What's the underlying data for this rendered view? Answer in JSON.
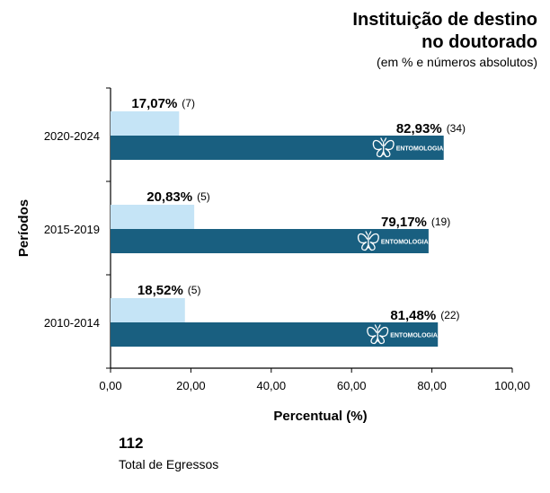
{
  "title": {
    "line1": "Instituição de destino",
    "line2": "no doutorado"
  },
  "subtitle": "(em % e números absolutos)",
  "total": {
    "value": "112",
    "label": "Total de Egressos"
  },
  "colors": {
    "light": "#c5e4f6",
    "dark": "#195f80",
    "axis": "#000000"
  },
  "bar_icon": {
    "name": "butterfly-icon",
    "label": "ENTOMOLOGIA"
  },
  "chart_data": {
    "type": "bar",
    "orientation": "horizontal",
    "xlabel": "Percentual  (%)",
    "ylabel": "Períodos",
    "xlim": [
      0,
      100
    ],
    "xticks": [
      "0,00",
      "20,00",
      "40,00",
      "60,00",
      "80,00",
      "100,00"
    ],
    "categories": [
      "2020-2024",
      "2015-2019",
      "2010-2014"
    ],
    "series": [
      {
        "values": [
          17.07,
          20.83,
          18.52
        ],
        "labels": [
          "17,07%",
          "20,83%",
          "18,52%"
        ],
        "counts": [
          "(7)",
          "(5)",
          "(5)"
        ]
      },
      {
        "values": [
          82.93,
          79.17,
          81.48
        ],
        "labels": [
          "82,93%",
          "79,17%",
          "81,48%"
        ],
        "counts": [
          "(34)",
          "(19)",
          "(22)"
        ]
      }
    ]
  }
}
